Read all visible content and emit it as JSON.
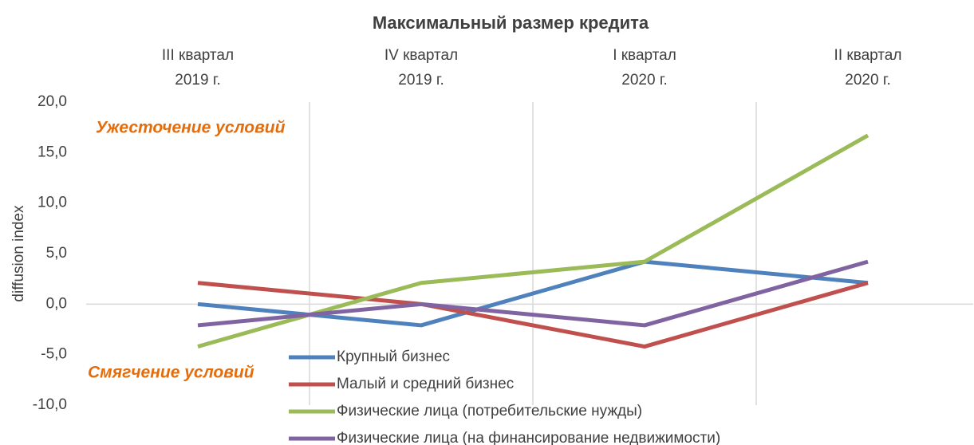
{
  "chart_data": {
    "type": "line",
    "title": "Максимальный размер кредита",
    "categories": [
      "III квартал\n2019 г.",
      "IV квартал\n2019 г.",
      "I квартал\n2020 г.",
      "II квартал\n2020 г."
    ],
    "series": [
      {
        "name": "Крупный бизнес",
        "color": "#4f81bd",
        "values": [
          0,
          -2.1,
          4.2,
          2.1
        ]
      },
      {
        "name": "Малый и средний бизнес",
        "color": "#c0504d",
        "values": [
          2.1,
          0,
          -4.2,
          2.1
        ]
      },
      {
        "name": "Физические лица (потребительские нужды)",
        "color": "#9bbb59",
        "values": [
          -4.2,
          2.1,
          4.2,
          16.7
        ]
      },
      {
        "name": "Физические лица (на финансирование недвижимости)",
        "color": "#8064a2",
        "values": [
          -2.1,
          0,
          -2.1,
          4.2
        ]
      }
    ],
    "ylabel": "diffusion index",
    "annotations": [
      "Ужесточение условий",
      "Смягчение условий"
    ],
    "ylim": [
      -10,
      20
    ],
    "yticks": [
      {
        "value": -10,
        "label": "-10,0"
      },
      {
        "value": -5,
        "label": "-5,0"
      },
      {
        "value": 0,
        "label": "0,0"
      },
      {
        "value": 5,
        "label": "5,0"
      },
      {
        "value": 10,
        "label": "10,0"
      },
      {
        "value": 15,
        "label": "15,0"
      },
      {
        "value": 20,
        "label": "20,0"
      }
    ],
    "grid": "vertical"
  }
}
